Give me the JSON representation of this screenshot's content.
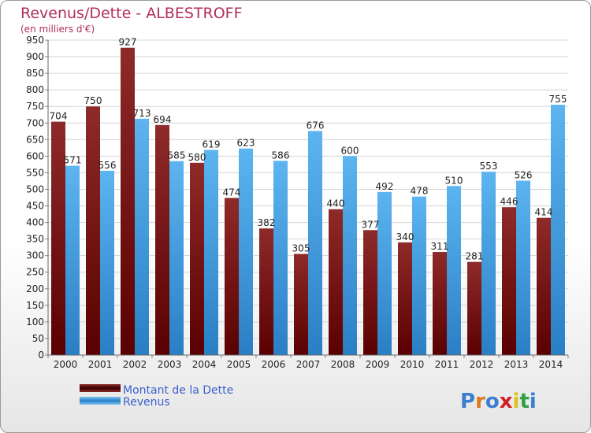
{
  "chart_data": {
    "type": "bar",
    "title": "Revenus/Dette - ALBESTROFF",
    "subtitle": "(en milliers d'€)",
    "categories": [
      "2000",
      "2001",
      "2002",
      "2003",
      "2004",
      "2005",
      "2006",
      "2007",
      "2008",
      "2009",
      "2010",
      "2011",
      "2012",
      "2013",
      "2014"
    ],
    "series": [
      {
        "name": "Montant de la Dette",
        "color": "#8b1a1a",
        "values": [
          704,
          750,
          927,
          694,
          580,
          474,
          382,
          305,
          440,
          377,
          340,
          311,
          281,
          446,
          414
        ]
      },
      {
        "name": "Revenus",
        "color": "#4aa6e8",
        "values": [
          571,
          556,
          713,
          585,
          619,
          623,
          586,
          676,
          600,
          492,
          478,
          510,
          553,
          526,
          755
        ]
      }
    ],
    "ylim": [
      0,
      950
    ],
    "yticks": [
      0,
      50,
      100,
      150,
      200,
      250,
      300,
      350,
      400,
      450,
      500,
      550,
      600,
      650,
      700,
      750,
      800,
      850,
      900,
      950
    ],
    "grid": true,
    "legend": "bottom-left"
  },
  "brand": "Proxiti"
}
